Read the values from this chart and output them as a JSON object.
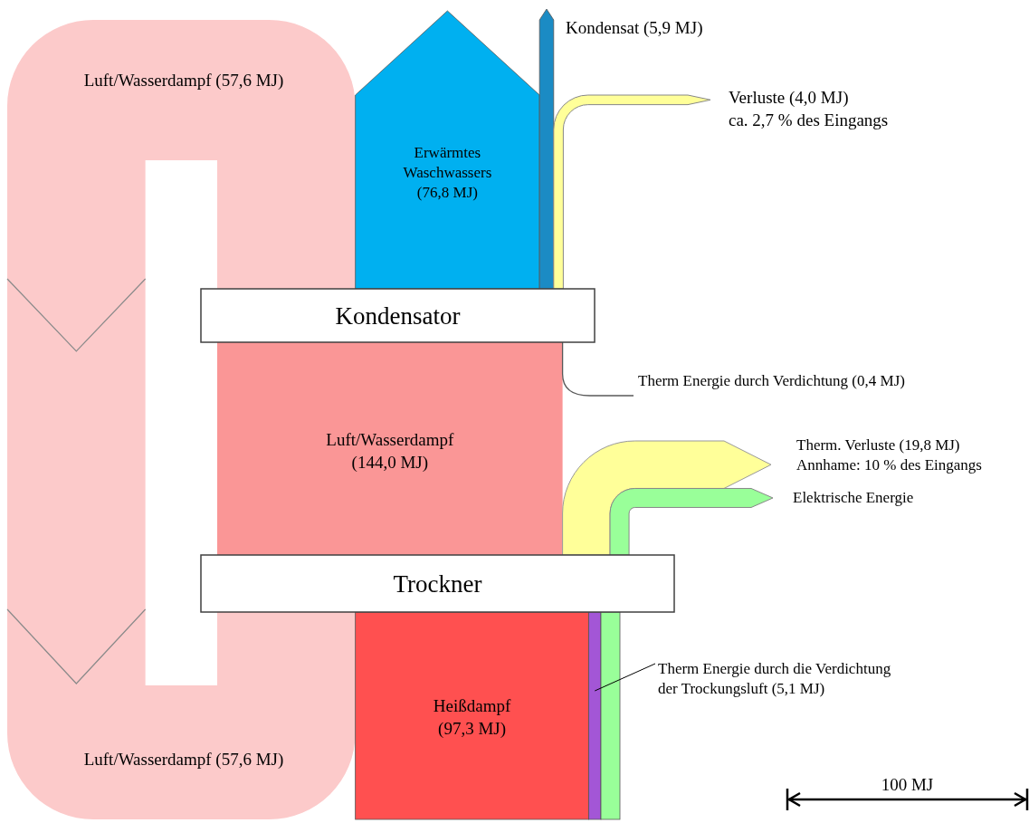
{
  "chart_data": {
    "type": "other",
    "categories": [
      "Luft/Wasserdampf",
      "Luft/Wasserdampf",
      "Erwärmtes\nWaschwassers",
      "Kondensat",
      "Verluste",
      "Therm Energie durch Verdichtung",
      "Luft/Wasserdampf",
      "Therm. Verluste",
      "Elektrische Energie",
      "Heißdampf",
      "Therm Energie durch die Verdichtung\nder Trockungsluft",
      "MJ"
    ],
    "values": [
      57.6,
      57.6,
      76.8,
      5.9,
      4.0,
      0.4,
      144.0,
      19.8,
      null,
      97.3,
      5.1,
      100
    ],
    "value_labels": [
      "(57,6 MJ)",
      "(57,6 MJ)",
      "(76,8 MJ)",
      "(5,9 MJ)",
      "(4,0 MJ)",
      "(0,4 MJ)",
      "(144,0 MJ)",
      "(19,8 MJ)",
      null,
      "(97,3 MJ)",
      "(5,1 MJ)",
      "100"
    ],
    "colors": [
      "#fccaca",
      "#fccaca",
      "#00b0f0",
      "#1b8bc4",
      "#ffff99",
      "#595959",
      "#fa9696",
      "#ffff99",
      "#99ff99",
      "#ff5050",
      "#a356d6",
      "#000000"
    ],
    "annotations": [
      "Kondensator",
      "Trockner",
      "ca. 2,7 % des Eingangs",
      "Annhame: 10 % des Eingangs"
    ]
  }
}
